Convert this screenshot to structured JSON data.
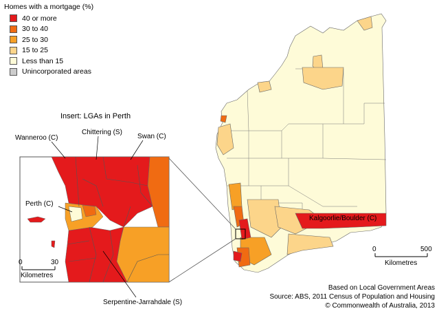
{
  "legend": {
    "title": "Homes with a mortgage (%)",
    "items": [
      {
        "label": "40 or more",
        "color": "#e41a1c"
      },
      {
        "label": "30 to 40",
        "color": "#f06b12"
      },
      {
        "label": "25 to 30",
        "color": "#f7a026"
      },
      {
        "label": "15 to 25",
        "color": "#fcd58a"
      },
      {
        "label": "Less than 15",
        "color": "#fefbd8"
      },
      {
        "label": "Unincorporated areas",
        "color": "#cccccc"
      }
    ]
  },
  "insert": {
    "title": "Insert: LGAs in Perth",
    "labels": {
      "wanneroo": "Wanneroo (C)",
      "chittering": "Chittering (S)",
      "swan": "Swan (C)",
      "perth": "Perth (C)",
      "serpentine": "Serpentine-Jarrahdale (S)"
    },
    "scale": {
      "start": "0",
      "end": "30",
      "unit": "Kilometres"
    }
  },
  "main_map": {
    "labels": {
      "kalgoorlie": "Kalgoorlie/Boulder (C)"
    },
    "scale": {
      "start": "0",
      "end": "500",
      "unit": "Kilometres"
    }
  },
  "credits": {
    "line1": "Based on Local Government Areas",
    "line2": "Source: ABS, 2011 Census of Population and Housing",
    "line3": "© Commonwealth of Australia, 2013"
  }
}
